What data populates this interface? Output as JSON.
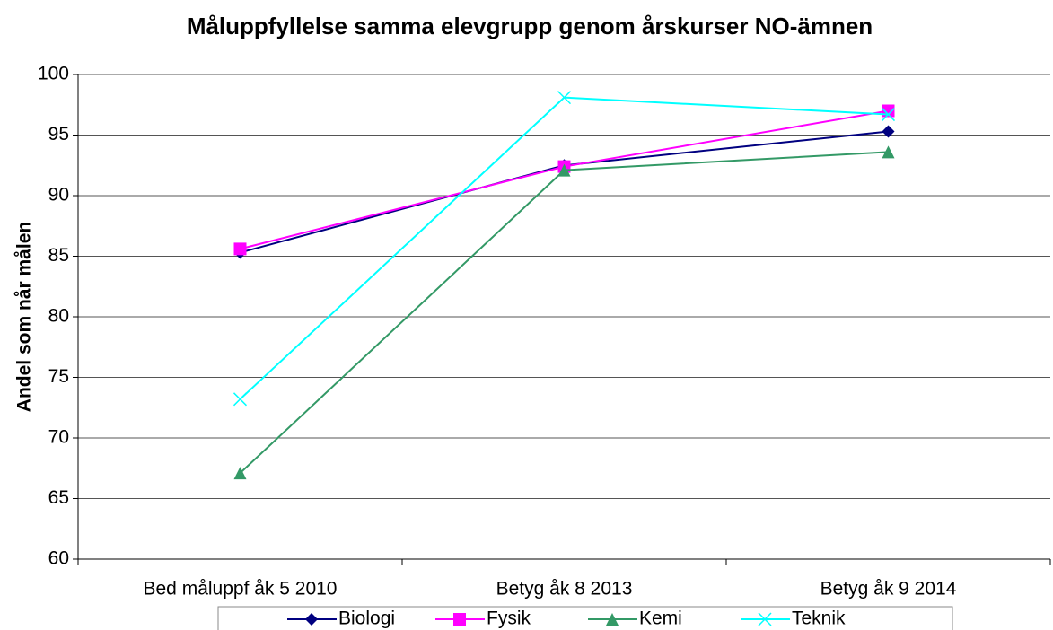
{
  "chart_data": {
    "type": "line",
    "title": "Måluppfyllelse samma elevgrupp genom årskurser NO-ämnen",
    "y_label": "Andel som når målen",
    "categories": [
      "Bed måluppf åk 5 2010",
      "Betyg åk 8 2013",
      "Betyg åk 9 2014"
    ],
    "series": [
      {
        "name": "Biologi",
        "color": "#000080",
        "marker": "diamond",
        "values": [
          85.3,
          92.5,
          95.3
        ]
      },
      {
        "name": "Fysik",
        "color": "#ff00ff",
        "marker": "square",
        "values": [
          85.6,
          92.4,
          97.0
        ]
      },
      {
        "name": "Kemi",
        "color": "#339966",
        "marker": "triangle",
        "values": [
          67.1,
          92.1,
          93.6
        ]
      },
      {
        "name": "Teknik",
        "color": "#00ffff",
        "marker": "x",
        "values": [
          73.2,
          98.1,
          96.7
        ]
      }
    ],
    "ylim": [
      60,
      100
    ],
    "yticks": [
      60,
      65,
      70,
      75,
      80,
      85,
      90,
      95,
      100
    ],
    "grid": true,
    "legend": "bottom"
  }
}
